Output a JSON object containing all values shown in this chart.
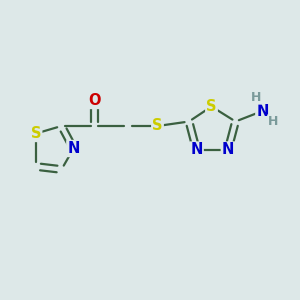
{
  "background_color": "#dde8e8",
  "bond_color": "#3a6040",
  "S_color": "#cccc00",
  "N_color": "#0000cc",
  "O_color": "#cc0000",
  "H_color": "#7a9a9a",
  "font_size_atom": 10.5,
  "font_size_H": 9,
  "bond_lw": 1.6,
  "xlim": [
    0,
    10
  ],
  "ylim": [
    0,
    10
  ]
}
